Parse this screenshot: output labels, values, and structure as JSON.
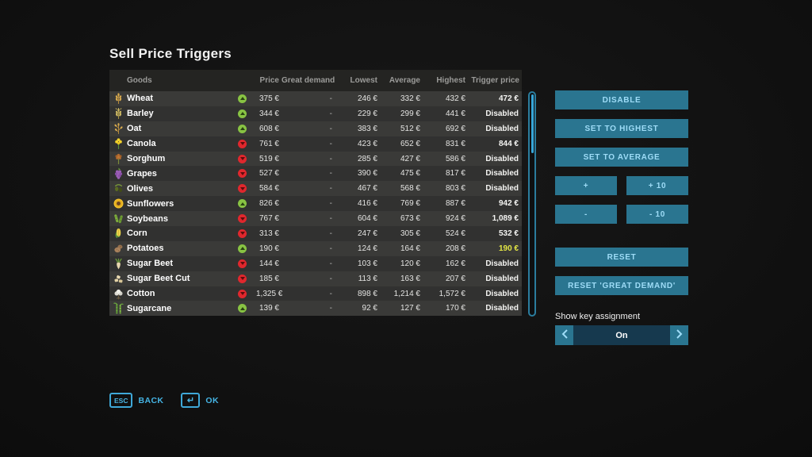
{
  "title": "Sell Price Triggers",
  "colors": {
    "accent_teal": "#2a7590",
    "accent_text": "#9edcf7",
    "footer_cyan": "#45b4e4",
    "trend_up_green": "#88c343",
    "trend_down_red": "#e0272d",
    "trigger_active_yellow": "#e3e645"
  },
  "table": {
    "columns": [
      "Goods",
      "Price",
      "Great demand",
      "Lowest",
      "Average",
      "Highest",
      "Trigger price"
    ],
    "rows": [
      {
        "name": "Wheat",
        "icon": "wheat-icon",
        "trend": "up",
        "price": "375 €",
        "great_demand": "-",
        "lowest": "246 €",
        "average": "332 €",
        "highest": "432 €",
        "trigger": "472 €",
        "trigger_state": "set"
      },
      {
        "name": "Barley",
        "icon": "barley-icon",
        "trend": "up",
        "price": "344 €",
        "great_demand": "-",
        "lowest": "229 €",
        "average": "299 €",
        "highest": "441 €",
        "trigger": "Disabled",
        "trigger_state": "disabled"
      },
      {
        "name": "Oat",
        "icon": "oat-icon",
        "trend": "up",
        "price": "608 €",
        "great_demand": "-",
        "lowest": "383 €",
        "average": "512 €",
        "highest": "692 €",
        "trigger": "Disabled",
        "trigger_state": "disabled"
      },
      {
        "name": "Canola",
        "icon": "canola-icon",
        "trend": "down",
        "price": "761 €",
        "great_demand": "-",
        "lowest": "423 €",
        "average": "652 €",
        "highest": "831 €",
        "trigger": "844 €",
        "trigger_state": "set"
      },
      {
        "name": "Sorghum",
        "icon": "sorghum-icon",
        "trend": "down",
        "price": "519 €",
        "great_demand": "-",
        "lowest": "285 €",
        "average": "427 €",
        "highest": "586 €",
        "trigger": "Disabled",
        "trigger_state": "disabled"
      },
      {
        "name": "Grapes",
        "icon": "grapes-icon",
        "trend": "down",
        "price": "527 €",
        "great_demand": "-",
        "lowest": "390 €",
        "average": "475 €",
        "highest": "817 €",
        "trigger": "Disabled",
        "trigger_state": "disabled"
      },
      {
        "name": "Olives",
        "icon": "olives-icon",
        "trend": "down",
        "price": "584 €",
        "great_demand": "-",
        "lowest": "467 €",
        "average": "568 €",
        "highest": "803 €",
        "trigger": "Disabled",
        "trigger_state": "disabled"
      },
      {
        "name": "Sunflowers",
        "icon": "sunflower-icon",
        "trend": "up",
        "price": "826 €",
        "great_demand": "-",
        "lowest": "416 €",
        "average": "769 €",
        "highest": "887 €",
        "trigger": "942 €",
        "trigger_state": "set"
      },
      {
        "name": "Soybeans",
        "icon": "soybeans-icon",
        "trend": "down",
        "price": "767 €",
        "great_demand": "-",
        "lowest": "604 €",
        "average": "673 €",
        "highest": "924 €",
        "trigger": "1,089 €",
        "trigger_state": "set"
      },
      {
        "name": "Corn",
        "icon": "corn-icon",
        "trend": "down",
        "price": "313 €",
        "great_demand": "-",
        "lowest": "247 €",
        "average": "305 €",
        "highest": "524 €",
        "trigger": "532 €",
        "trigger_state": "set"
      },
      {
        "name": "Potatoes",
        "icon": "potato-icon",
        "trend": "up",
        "price": "190 €",
        "great_demand": "-",
        "lowest": "124 €",
        "average": "164 €",
        "highest": "208 €",
        "trigger": "190 €",
        "trigger_state": "active"
      },
      {
        "name": "Sugar Beet",
        "icon": "sugar-beet-icon",
        "trend": "down",
        "price": "144 €",
        "great_demand": "-",
        "lowest": "103 €",
        "average": "120 €",
        "highest": "162 €",
        "trigger": "Disabled",
        "trigger_state": "disabled"
      },
      {
        "name": "Sugar Beet Cut",
        "icon": "sugar-beet-cut-icon",
        "trend": "down",
        "price": "185 €",
        "great_demand": "-",
        "lowest": "113 €",
        "average": "163 €",
        "highest": "207 €",
        "trigger": "Disabled",
        "trigger_state": "disabled"
      },
      {
        "name": "Cotton",
        "icon": "cotton-icon",
        "trend": "down",
        "price": "1,325 €",
        "great_demand": "-",
        "lowest": "898 €",
        "average": "1,214 €",
        "highest": "1,572 €",
        "trigger": "Disabled",
        "trigger_state": "disabled"
      },
      {
        "name": "Sugarcane",
        "icon": "sugarcane-icon",
        "trend": "up",
        "price": "139 €",
        "great_demand": "-",
        "lowest": "92 €",
        "average": "127 €",
        "highest": "170 €",
        "trigger": "Disabled",
        "trigger_state": "disabled"
      }
    ]
  },
  "right_panel": {
    "disable_label": "DISABLE",
    "set_highest_label": "SET TO HIGHEST",
    "set_average_label": "SET TO AVERAGE",
    "plus_label": "+",
    "plus10_label": "+ 10",
    "minus_label": "-",
    "minus10_label": "- 10",
    "reset_label": "RESET",
    "reset_great_demand_label": "RESET 'GREAT DEMAND'",
    "key_assignment_label": "Show key assignment",
    "key_assignment_value": "On"
  },
  "footer": {
    "back_key": "ESC",
    "back_label": "BACK",
    "ok_key": "↵",
    "ok_label": "OK"
  }
}
